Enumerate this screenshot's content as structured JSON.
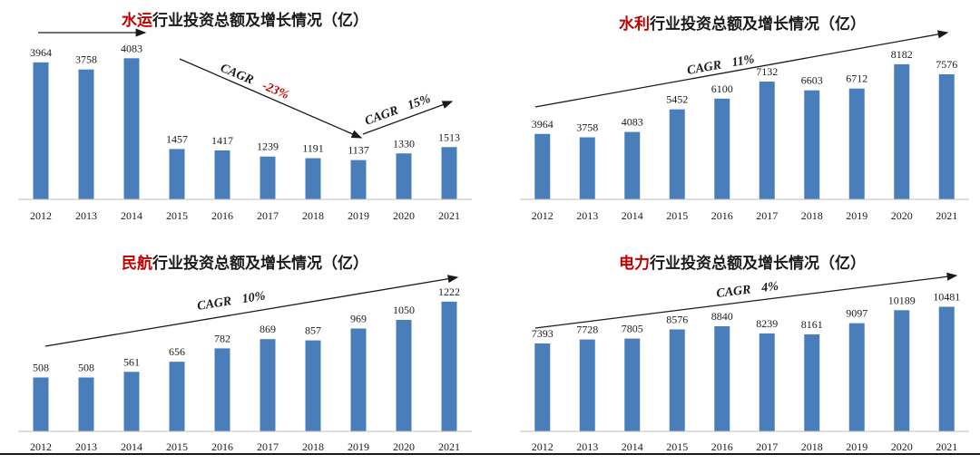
{
  "colors": {
    "bar": "#4a7ebb",
    "highlight": "#c00000",
    "text": "#1a1a1a"
  },
  "chart_data": [
    {
      "type": "bar",
      "title_highlight": "水运",
      "title_rest": "行业投资总额及增长情况（亿）",
      "categories": [
        "2012",
        "2013",
        "2014",
        "2015",
        "2016",
        "2017",
        "2018",
        "2019",
        "2020",
        "2021"
      ],
      "values": [
        3964,
        3758,
        4083,
        1457,
        1417,
        1239,
        1191,
        1137,
        1330,
        1513
      ],
      "ylim": [
        0,
        4300
      ],
      "annotations": [
        {
          "label": "CAGR",
          "value": "-23%"
        },
        {
          "label": "CAGR",
          "value": "15%"
        }
      ]
    },
    {
      "type": "bar",
      "title_highlight": "水利",
      "title_rest": "行业投资总额及增长情况（亿）",
      "categories": [
        "2012",
        "2013",
        "2014",
        "2015",
        "2016",
        "2017",
        "2018",
        "2019",
        "2020",
        "2021"
      ],
      "values": [
        3964,
        3758,
        4083,
        5452,
        6100,
        7132,
        6603,
        6712,
        8182,
        7576
      ],
      "ylim": [
        0,
        9000
      ],
      "annotations": [
        {
          "label": "CAGR",
          "value": "11%"
        }
      ]
    },
    {
      "type": "bar",
      "title_highlight": "民航",
      "title_rest": "行业投资总额及增长情况（亿）",
      "categories": [
        "2012",
        "2013",
        "2014",
        "2015",
        "2016",
        "2017",
        "2018",
        "2019",
        "2020",
        "2021"
      ],
      "values": [
        508,
        508,
        561,
        656,
        782,
        869,
        857,
        969,
        1050,
        1222
      ],
      "ylim": [
        0,
        1400
      ],
      "annotations": [
        {
          "label": "CAGR",
          "value": "10%"
        }
      ]
    },
    {
      "type": "bar",
      "title_highlight": "电力",
      "title_rest": "行业投资总额及增长情况（亿）",
      "categories": [
        "2012",
        "2013",
        "2014",
        "2015",
        "2016",
        "2017",
        "2018",
        "2019",
        "2020",
        "2021"
      ],
      "values": [
        7393,
        7728,
        7805,
        8576,
        8840,
        8239,
        8161,
        9097,
        10189,
        10481
      ],
      "ylim": [
        0,
        12500
      ],
      "annotations": [
        {
          "label": "CAGR",
          "value": "4%"
        }
      ]
    }
  ]
}
